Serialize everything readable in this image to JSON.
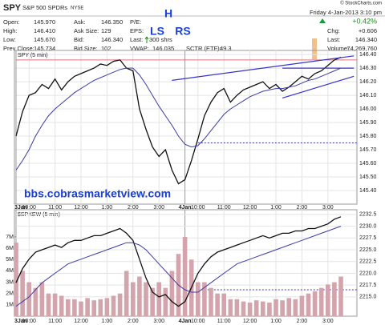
{
  "header": {
    "symbol": "SPY",
    "name": "S&P 500 SPDRs",
    "exchange": "NYSE",
    "copyright": "© StockCharts.com",
    "datetime": "Friday 4-Jan-2013 3:10 pm"
  },
  "quote": {
    "left": [
      [
        "Open:",
        "145.970"
      ],
      [
        "High:",
        "146.410"
      ],
      [
        "Low:",
        "145.670"
      ],
      [
        "Prev Close:",
        "145.734"
      ]
    ],
    "middle": [
      [
        "Ask:",
        "146.350"
      ],
      [
        "Ask Size:",
        "129"
      ],
      [
        "Bid:",
        "146.340"
      ],
      [
        "Bid Size:",
        "102"
      ]
    ],
    "pe": "P/E:",
    "eps": "EPS:",
    "last_label": "Last:",
    "last_shares": "300 shrs",
    "vwap": [
      "VWAP:",
      "146.035"
    ],
    "sctr": [
      "SCTR (ETF):",
      "49.3"
    ],
    "change_pct": "+0.42%",
    "right": [
      [
        "Chg:",
        "+0.606"
      ],
      [
        "Last:",
        "146.340"
      ],
      [
        "Volume:",
        "74,269,760"
      ]
    ]
  },
  "annotations": {
    "h": "H",
    "ls": "LS",
    "rs": "RS",
    "site": "bbs.cobrasmarketview.com"
  },
  "chart_data": [
    {
      "type": "line",
      "title": "SPY (5 min)",
      "categories": [
        "3Jan",
        null,
        "10:00",
        null,
        null,
        null,
        "11:00",
        null,
        null,
        null,
        "12:00",
        null,
        null,
        null,
        "1:00",
        null,
        null,
        null,
        "2:00",
        null,
        null,
        null,
        "3:00",
        null,
        null,
        null,
        "4Jan",
        null,
        "10:00",
        null,
        null,
        null,
        "11:00",
        null,
        null,
        null,
        "12:00",
        null,
        null,
        null,
        "1:00",
        null,
        null,
        null,
        "2:00",
        null,
        null,
        null,
        "3:00",
        null,
        null
      ],
      "series": [
        {
          "color": "#111111",
          "values": [
            145.8,
            145.98,
            146.1,
            146.12,
            146.18,
            146.15,
            146.22,
            146.14,
            146.2,
            146.24,
            146.26,
            146.28,
            146.3,
            146.33,
            146.32,
            146.35,
            146.36,
            146.3,
            146.28,
            146.0,
            145.85,
            145.72,
            145.65,
            145.7,
            145.55,
            145.45,
            145.48,
            145.62,
            145.78,
            145.95,
            146.05,
            146.12,
            146.15,
            146.05,
            146.1,
            146.14,
            146.16,
            146.18,
            146.2,
            146.15,
            146.18,
            146.13,
            146.16,
            146.2,
            146.24,
            146.22,
            146.26,
            146.28,
            146.32,
            146.36,
            146.38
          ]
        },
        {
          "color": "#3a3aa8",
          "values": [
            145.55,
            145.62,
            145.7,
            145.8,
            145.88,
            145.95,
            146.0,
            146.04,
            146.08,
            146.12,
            146.15,
            146.18,
            146.21,
            146.23,
            146.25,
            146.27,
            146.29,
            146.3,
            146.3,
            146.25,
            146.18,
            146.1,
            146.02,
            145.95,
            145.88,
            145.8,
            145.74,
            145.72,
            145.73,
            145.78,
            145.84,
            145.9,
            145.96,
            146.0,
            146.03,
            146.06,
            146.09,
            146.11,
            146.13,
            146.14,
            146.15,
            146.15,
            146.16,
            146.17,
            146.19,
            146.21,
            146.22,
            146.24,
            146.26,
            146.28,
            146.3
          ]
        }
      ],
      "hlines": [
        {
          "value": 146.36,
          "color": "#e07080",
          "from": 0,
          "dash": false
        },
        {
          "value": 145.75,
          "color": "#3333cc",
          "from": 28,
          "dash": true
        }
      ],
      "trendlines": [
        {
          "x": [
            24,
            52
          ],
          "y": [
            146.21,
            146.39
          ],
          "color": "#3333cc"
        },
        {
          "x": [
            41,
            52
          ],
          "y": [
            146.3,
            146.3
          ],
          "color": "#3333cc"
        },
        {
          "x": [
            41,
            52
          ],
          "y": [
            146.08,
            146.24
          ],
          "color": "#3333cc"
        }
      ],
      "ylim": [
        145.3,
        146.43
      ],
      "yticks": [
        {
          "value": 146.4,
          "label": "146.40"
        },
        {
          "value": 146.3,
          "label": "146.30"
        },
        {
          "value": 146.2,
          "label": "146.20"
        },
        {
          "value": 146.1,
          "label": "146.10"
        },
        {
          "value": 146.0,
          "label": "146.00"
        },
        {
          "value": 145.9,
          "label": "145.90"
        },
        {
          "value": 145.8,
          "label": "145.80"
        },
        {
          "value": 145.7,
          "label": "145.70"
        },
        {
          "value": 145.6,
          "label": "145.60"
        },
        {
          "value": 145.5,
          "label": "145.50"
        },
        {
          "value": 145.4,
          "label": "145.40"
        }
      ],
      "grid": true
    },
    {
      "type": "bar",
      "title": "$SPXEW (5 min)",
      "categories": [
        "3Jan",
        null,
        "10:00",
        null,
        null,
        null,
        "11:00",
        null,
        null,
        null,
        "12:00",
        null,
        null,
        null,
        "1:00",
        null,
        null,
        null,
        "2:00",
        null,
        null,
        null,
        "3:00",
        null,
        null,
        null,
        "4Jan",
        null,
        "10:00",
        null,
        null,
        null,
        "11:00",
        null,
        null,
        null,
        "12:00",
        null,
        null,
        null,
        "1:00",
        null,
        null,
        null,
        "2:00",
        null,
        null,
        null,
        "3:00",
        null,
        null
      ],
      "series": [
        {
          "color": "#d4a4ac",
          "values": [
            6500000,
            4000000,
            3000000,
            2500000,
            3000000,
            2000000,
            2000000,
            1800000,
            1500000,
            1500000,
            1300000,
            1600000,
            1400000,
            1500000,
            1600000,
            1800000,
            2000000,
            4000000,
            3000000,
            3500000,
            3000000,
            2500000,
            3000000,
            2500000,
            4000000,
            5500000,
            7000000,
            5000000,
            3000000,
            3000000,
            2500000,
            2000000,
            2000000,
            1500000,
            1500000,
            1300000,
            1200000,
            1400000,
            1300000,
            1200000,
            1500000,
            1400000,
            1600000,
            1500000,
            1800000,
            2000000,
            2200000,
            2500000,
            2800000,
            3000000,
            3500000
          ]
        },
        {
          "color": "#111111",
          "axis": "y2",
          "values": [
            2218,
            2221,
            2223,
            2224.5,
            2225,
            2225.5,
            2226,
            2225.5,
            2226.5,
            2227,
            2227,
            2227.5,
            2228,
            2228,
            2228.5,
            2229,
            2229.5,
            2228.5,
            2227,
            2223,
            2219,
            2216,
            2215,
            2215.5,
            2214,
            2213,
            2214,
            2217,
            2220,
            2222,
            2223.5,
            2224.5,
            2225,
            2225.5,
            2226,
            2226.5,
            2227,
            2227.5,
            2228,
            2227.5,
            2228,
            2228.5,
            2228.5,
            2229,
            2229,
            2229.5,
            2229.5,
            2230,
            2230.5,
            2231.5,
            2232
          ]
        },
        {
          "color": "#3a3aa8",
          "axis": "y2",
          "values": [
            2213,
            2214,
            2215,
            2216.5,
            2218,
            2219,
            2220,
            2221,
            2222,
            2222.5,
            2223,
            2223.5,
            2224,
            2224.5,
            2225,
            2225.5,
            2226,
            2226.5,
            2226.5,
            2226,
            2225,
            2223.5,
            2222,
            2220.5,
            2219,
            2217.5,
            2216.5,
            2216,
            2216,
            2217,
            2218,
            2219,
            2220,
            2221,
            2222,
            2222.5,
            2223,
            2223.5,
            2224,
            2224.5,
            2225,
            2225.5,
            2226,
            2226.5,
            2227,
            2227.5,
            2228,
            2228.5,
            2229,
            2229.5,
            2230
          ]
        }
      ],
      "hlines": [
        {
          "value": 2216.5,
          "color": "#3333cc",
          "from": 28,
          "dash": true
        }
      ],
      "ylim": [
        0,
        9400000
      ],
      "yticks": [
        {
          "value": 1000000,
          "label": "1M"
        },
        {
          "value": 2000000,
          "label": "2M"
        },
        {
          "value": 3000000,
          "label": "3M"
        },
        {
          "value": 4000000,
          "label": "4M"
        },
        {
          "value": 5000000,
          "label": "5M"
        },
        {
          "value": 6000000,
          "label": "6M"
        },
        {
          "value": 7000000,
          "label": "7M"
        }
      ],
      "y2lim": [
        2210.9,
        2233.5
      ],
      "y2ticks": [
        {
          "value": 2215,
          "label": "2215.0"
        },
        2217.5,
        {
          "value": 2220,
          "label": "2220.0"
        },
        2222.5,
        {
          "value": 2225,
          "label": "2225.0"
        },
        2227.5,
        {
          "value": 2230,
          "label": "2230.0"
        },
        2232.5
      ],
      "grid": true
    }
  ]
}
